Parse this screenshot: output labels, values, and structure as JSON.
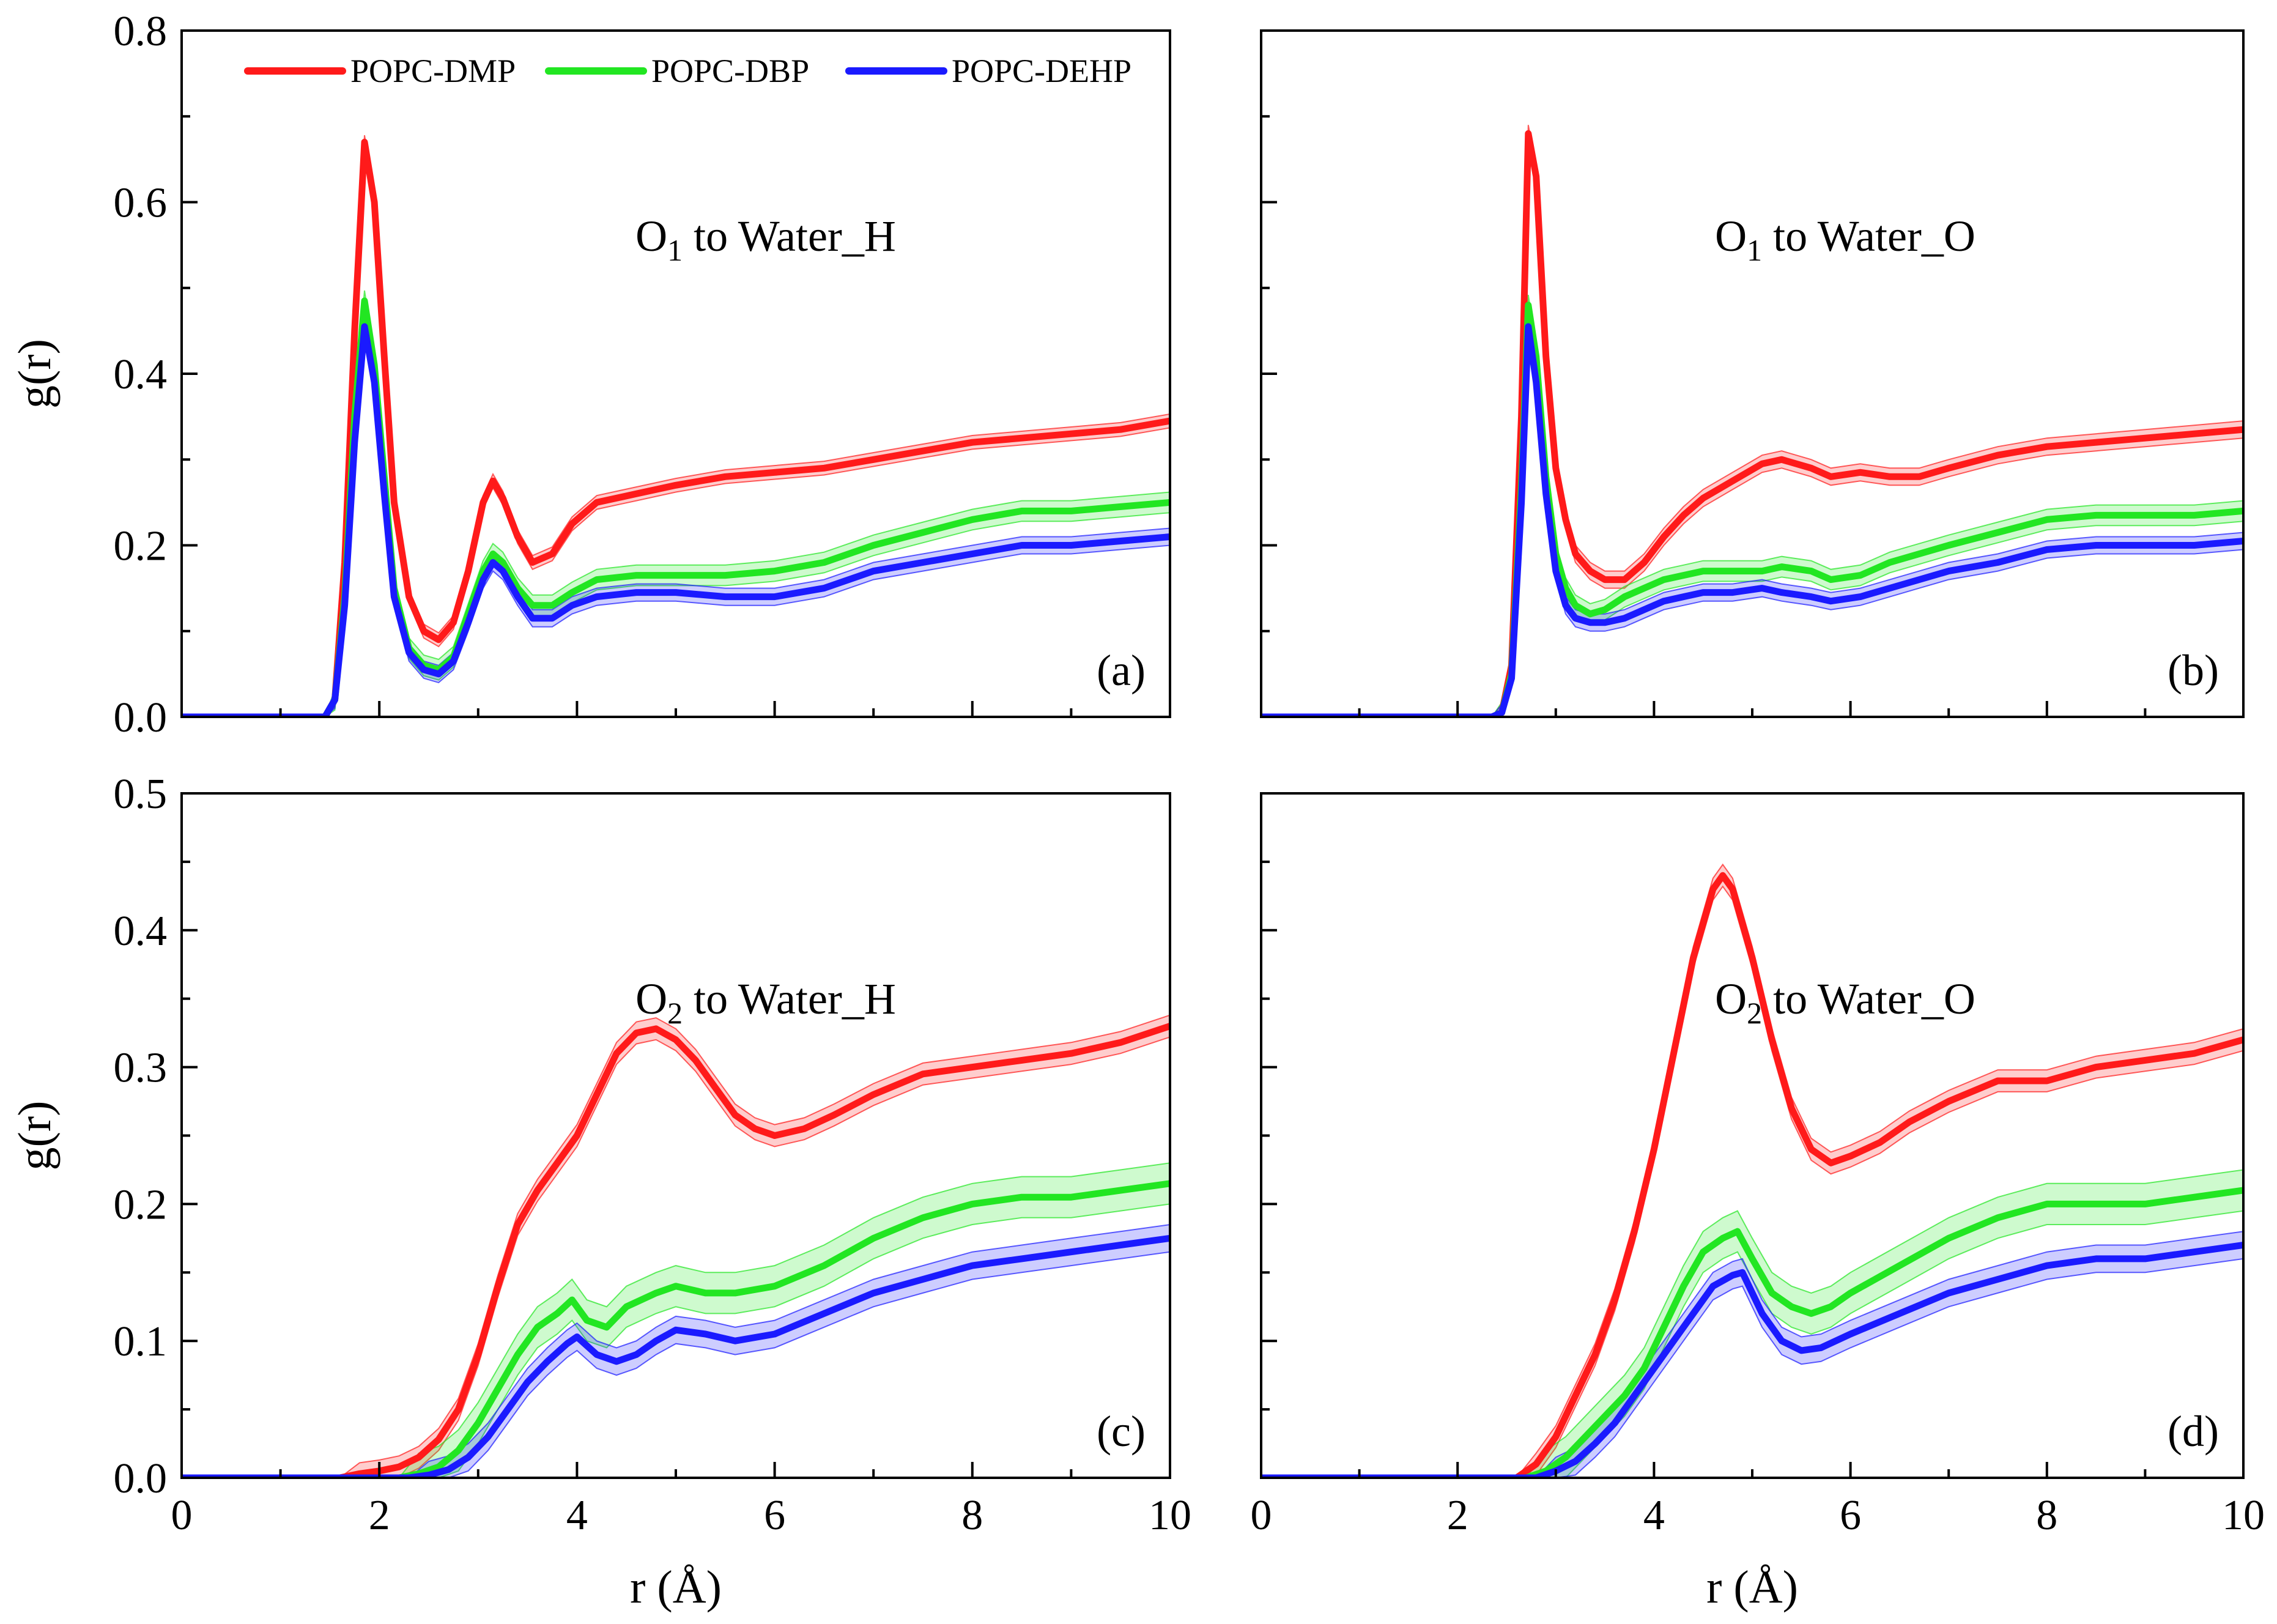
{
  "colors": {
    "POPC-DMP": "#ff1a1a",
    "POPC-DBP": "#22e622",
    "POPC-DEHP": "#1a1aff"
  },
  "legend": [
    "POPC-DMP",
    "POPC-DBP",
    "POPC-DEHP"
  ],
  "chart_data": [
    {
      "type": "line",
      "panel": "(a)",
      "annotation": {
        "main": "O",
        "sub": "1",
        "rest": " to Water_H"
      },
      "xlabel": "",
      "ylabel": "g(r)",
      "xlim": [
        0,
        10
      ],
      "ylim": [
        0,
        0.8
      ],
      "xticks": [
        0,
        2,
        4,
        6,
        8,
        10
      ],
      "yticks": [
        "0.0",
        "0.2",
        "0.4",
        "0.6",
        "0.8"
      ],
      "show_xtick_labels": false,
      "show_yticks": true,
      "series": [
        {
          "name": "POPC-DMP",
          "band": 0.008,
          "x": [
            0,
            1.45,
            1.55,
            1.65,
            1.75,
            1.85,
            1.95,
            2.05,
            2.15,
            2.3,
            2.45,
            2.6,
            2.75,
            2.9,
            3.05,
            3.15,
            3.25,
            3.4,
            3.55,
            3.75,
            3.95,
            4.2,
            4.6,
            5.0,
            5.5,
            6.0,
            6.5,
            7.0,
            7.5,
            8.0,
            8.5,
            9.0,
            9.5,
            10.0
          ],
          "y": [
            0,
            0,
            0.02,
            0.18,
            0.45,
            0.67,
            0.6,
            0.42,
            0.25,
            0.14,
            0.1,
            0.09,
            0.11,
            0.17,
            0.25,
            0.275,
            0.255,
            0.21,
            0.18,
            0.19,
            0.225,
            0.25,
            0.26,
            0.27,
            0.28,
            0.285,
            0.29,
            0.3,
            0.31,
            0.32,
            0.325,
            0.33,
            0.335,
            0.345
          ]
        },
        {
          "name": "POPC-DBP",
          "band": 0.012,
          "x": [
            0,
            1.45,
            1.55,
            1.65,
            1.75,
            1.85,
            1.95,
            2.05,
            2.15,
            2.3,
            2.45,
            2.6,
            2.75,
            2.9,
            3.05,
            3.15,
            3.25,
            3.4,
            3.55,
            3.75,
            3.95,
            4.2,
            4.6,
            5.0,
            5.5,
            6.0,
            6.5,
            7.0,
            7.5,
            8.0,
            8.5,
            9.0,
            9.5,
            10.0
          ],
          "y": [
            0,
            0,
            0.02,
            0.14,
            0.35,
            0.485,
            0.41,
            0.28,
            0.15,
            0.08,
            0.06,
            0.055,
            0.07,
            0.12,
            0.17,
            0.19,
            0.18,
            0.15,
            0.13,
            0.13,
            0.145,
            0.16,
            0.165,
            0.165,
            0.165,
            0.17,
            0.18,
            0.2,
            0.215,
            0.23,
            0.24,
            0.24,
            0.245,
            0.25
          ]
        },
        {
          "name": "POPC-DEHP",
          "band": 0.01,
          "x": [
            0,
            1.45,
            1.55,
            1.65,
            1.75,
            1.85,
            1.95,
            2.05,
            2.15,
            2.3,
            2.45,
            2.6,
            2.75,
            2.9,
            3.05,
            3.15,
            3.25,
            3.4,
            3.55,
            3.75,
            3.95,
            4.2,
            4.6,
            5.0,
            5.5,
            6.0,
            6.5,
            7.0,
            7.5,
            8.0,
            8.5,
            9.0,
            9.5,
            10.0
          ],
          "y": [
            0,
            0,
            0.02,
            0.13,
            0.32,
            0.455,
            0.39,
            0.26,
            0.14,
            0.075,
            0.055,
            0.05,
            0.065,
            0.11,
            0.16,
            0.18,
            0.17,
            0.14,
            0.115,
            0.115,
            0.13,
            0.14,
            0.145,
            0.145,
            0.14,
            0.14,
            0.15,
            0.17,
            0.18,
            0.19,
            0.2,
            0.2,
            0.205,
            0.21
          ]
        }
      ]
    },
    {
      "type": "line",
      "panel": "(b)",
      "annotation": {
        "main": "O",
        "sub": "1",
        "rest": " to Water_O"
      },
      "xlabel": "",
      "ylabel": "",
      "xlim": [
        0,
        10
      ],
      "ylim": [
        0,
        0.8
      ],
      "xticks": [
        0,
        2,
        4,
        6,
        8,
        10
      ],
      "yticks": [
        "0.0",
        "0.2",
        "0.4",
        "0.6",
        "0.8"
      ],
      "show_xtick_labels": false,
      "show_yticks": false,
      "series": [
        {
          "name": "POPC-DMP",
          "band": 0.01,
          "x": [
            0,
            2.35,
            2.45,
            2.55,
            2.65,
            2.72,
            2.8,
            2.9,
            3.0,
            3.1,
            3.2,
            3.35,
            3.5,
            3.7,
            3.9,
            4.1,
            4.3,
            4.5,
            4.8,
            5.1,
            5.3,
            5.6,
            5.8,
            6.1,
            6.4,
            6.7,
            7.0,
            7.5,
            8.0,
            8.5,
            9.0,
            9.5,
            10.0
          ],
          "y": [
            0,
            0,
            0.005,
            0.06,
            0.35,
            0.68,
            0.63,
            0.42,
            0.29,
            0.23,
            0.19,
            0.17,
            0.16,
            0.16,
            0.18,
            0.21,
            0.235,
            0.255,
            0.275,
            0.295,
            0.3,
            0.29,
            0.28,
            0.285,
            0.28,
            0.28,
            0.29,
            0.305,
            0.315,
            0.32,
            0.325,
            0.33,
            0.335
          ]
        },
        {
          "name": "POPC-DBP",
          "band": 0.012,
          "x": [
            0,
            2.35,
            2.45,
            2.55,
            2.65,
            2.72,
            2.8,
            2.9,
            3.0,
            3.1,
            3.2,
            3.35,
            3.5,
            3.7,
            3.9,
            4.1,
            4.3,
            4.5,
            4.8,
            5.1,
            5.3,
            5.6,
            5.8,
            6.1,
            6.4,
            6.7,
            7.0,
            7.5,
            8.0,
            8.5,
            9.0,
            9.5,
            10.0
          ],
          "y": [
            0,
            0,
            0.005,
            0.05,
            0.27,
            0.48,
            0.42,
            0.28,
            0.19,
            0.15,
            0.13,
            0.12,
            0.125,
            0.14,
            0.15,
            0.16,
            0.165,
            0.17,
            0.17,
            0.17,
            0.175,
            0.17,
            0.16,
            0.165,
            0.18,
            0.19,
            0.2,
            0.215,
            0.23,
            0.235,
            0.235,
            0.235,
            0.24
          ]
        },
        {
          "name": "POPC-DEHP",
          "band": 0.01,
          "x": [
            0,
            2.35,
            2.45,
            2.55,
            2.65,
            2.72,
            2.8,
            2.9,
            3.0,
            3.1,
            3.2,
            3.35,
            3.5,
            3.7,
            3.9,
            4.1,
            4.3,
            4.5,
            4.8,
            5.1,
            5.3,
            5.6,
            5.8,
            6.1,
            6.4,
            6.7,
            7.0,
            7.5,
            8.0,
            8.5,
            9.0,
            9.5,
            10.0
          ],
          "y": [
            0,
            0,
            0.005,
            0.045,
            0.25,
            0.455,
            0.39,
            0.26,
            0.17,
            0.13,
            0.115,
            0.11,
            0.11,
            0.115,
            0.125,
            0.135,
            0.14,
            0.145,
            0.145,
            0.15,
            0.145,
            0.14,
            0.135,
            0.14,
            0.15,
            0.16,
            0.17,
            0.18,
            0.195,
            0.2,
            0.2,
            0.2,
            0.205
          ]
        }
      ]
    },
    {
      "type": "line",
      "panel": "(c)",
      "annotation": {
        "main": "O",
        "sub": "2",
        "rest": " to Water_H"
      },
      "xlabel": "r (Å)",
      "ylabel": "g(r)",
      "xlim": [
        0,
        10
      ],
      "ylim": [
        0,
        0.5
      ],
      "xticks": [
        0,
        2,
        4,
        6,
        8,
        10
      ],
      "yticks": [
        "0.0",
        "0.1",
        "0.2",
        "0.3",
        "0.4",
        "0.5"
      ],
      "show_xtick_labels": true,
      "show_yticks": true,
      "series": [
        {
          "name": "POPC-DMP",
          "band": 0.008,
          "x": [
            0,
            1.6,
            1.8,
            2.0,
            2.2,
            2.4,
            2.6,
            2.8,
            3.0,
            3.2,
            3.4,
            3.6,
            3.8,
            4.0,
            4.2,
            4.4,
            4.6,
            4.8,
            5.0,
            5.2,
            5.4,
            5.6,
            5.8,
            6.0,
            6.3,
            6.6,
            7.0,
            7.5,
            8.0,
            8.5,
            9.0,
            9.5,
            10.0
          ],
          "y": [
            0,
            0,
            0.003,
            0.005,
            0.008,
            0.015,
            0.028,
            0.05,
            0.09,
            0.14,
            0.185,
            0.21,
            0.23,
            0.25,
            0.28,
            0.31,
            0.325,
            0.328,
            0.32,
            0.305,
            0.285,
            0.265,
            0.255,
            0.25,
            0.255,
            0.265,
            0.28,
            0.295,
            0.3,
            0.305,
            0.31,
            0.318,
            0.33
          ]
        },
        {
          "name": "POPC-DBP",
          "band": 0.015,
          "x": [
            0,
            2.2,
            2.4,
            2.6,
            2.8,
            3.0,
            3.2,
            3.4,
            3.6,
            3.8,
            3.95,
            4.1,
            4.3,
            4.5,
            4.8,
            5.0,
            5.3,
            5.6,
            6.0,
            6.5,
            7.0,
            7.5,
            8.0,
            8.5,
            9.0,
            9.5,
            10.0
          ],
          "y": [
            0,
            0,
            0.003,
            0.008,
            0.02,
            0.04,
            0.065,
            0.09,
            0.11,
            0.12,
            0.13,
            0.115,
            0.11,
            0.125,
            0.135,
            0.14,
            0.135,
            0.135,
            0.14,
            0.155,
            0.175,
            0.19,
            0.2,
            0.205,
            0.205,
            0.21,
            0.215
          ]
        },
        {
          "name": "POPC-DEHP",
          "band": 0.01,
          "x": [
            0,
            2.3,
            2.5,
            2.7,
            2.9,
            3.1,
            3.3,
            3.5,
            3.7,
            3.9,
            4.0,
            4.2,
            4.4,
            4.6,
            4.8,
            5.0,
            5.3,
            5.6,
            6.0,
            6.5,
            7.0,
            7.5,
            8.0,
            8.5,
            9.0,
            9.5,
            10.0
          ],
          "y": [
            0,
            0,
            0.002,
            0.006,
            0.015,
            0.03,
            0.05,
            0.07,
            0.085,
            0.098,
            0.103,
            0.09,
            0.085,
            0.09,
            0.1,
            0.108,
            0.105,
            0.1,
            0.105,
            0.12,
            0.135,
            0.145,
            0.155,
            0.16,
            0.165,
            0.17,
            0.175
          ]
        }
      ]
    },
    {
      "type": "line",
      "panel": "(d)",
      "annotation": {
        "main": "O",
        "sub": "2",
        "rest": " to Water_O"
      },
      "xlabel": "r (Å)",
      "ylabel": "",
      "xlim": [
        0,
        10
      ],
      "ylim": [
        0,
        0.5
      ],
      "xticks": [
        0,
        2,
        4,
        6,
        8,
        10
      ],
      "yticks": [
        "0.0",
        "0.1",
        "0.2",
        "0.3",
        "0.4",
        "0.5"
      ],
      "show_xtick_labels": true,
      "show_yticks": false,
      "series": [
        {
          "name": "POPC-DMP",
          "band": 0.008,
          "x": [
            0,
            2.6,
            2.8,
            3.0,
            3.2,
            3.4,
            3.6,
            3.8,
            4.0,
            4.2,
            4.4,
            4.6,
            4.7,
            4.8,
            5.0,
            5.2,
            5.4,
            5.6,
            5.8,
            6.0,
            6.3,
            6.6,
            7.0,
            7.5,
            8.0,
            8.5,
            9.0,
            9.5,
            10.0
          ],
          "y": [
            0,
            0,
            0.01,
            0.03,
            0.06,
            0.09,
            0.13,
            0.18,
            0.24,
            0.31,
            0.38,
            0.43,
            0.44,
            0.43,
            0.38,
            0.32,
            0.27,
            0.24,
            0.23,
            0.235,
            0.245,
            0.26,
            0.275,
            0.29,
            0.29,
            0.3,
            0.305,
            0.31,
            0.32
          ]
        },
        {
          "name": "POPC-DBP",
          "band": 0.015,
          "x": [
            0,
            2.7,
            2.9,
            3.1,
            3.3,
            3.5,
            3.7,
            3.9,
            4.1,
            4.3,
            4.5,
            4.7,
            4.85,
            5.0,
            5.2,
            5.4,
            5.6,
            5.8,
            6.0,
            6.5,
            7.0,
            7.5,
            8.0,
            8.5,
            9.0,
            9.5,
            10.0
          ],
          "y": [
            0,
            0,
            0.005,
            0.015,
            0.03,
            0.045,
            0.06,
            0.08,
            0.11,
            0.14,
            0.165,
            0.175,
            0.18,
            0.16,
            0.135,
            0.125,
            0.12,
            0.125,
            0.135,
            0.155,
            0.175,
            0.19,
            0.2,
            0.2,
            0.2,
            0.205,
            0.21
          ]
        },
        {
          "name": "POPC-DEHP",
          "band": 0.01,
          "x": [
            0,
            2.8,
            3.0,
            3.2,
            3.4,
            3.6,
            3.8,
            4.0,
            4.2,
            4.4,
            4.6,
            4.8,
            4.9,
            5.1,
            5.3,
            5.5,
            5.7,
            6.0,
            6.5,
            7.0,
            7.5,
            8.0,
            8.5,
            9.0,
            9.5,
            10.0
          ],
          "y": [
            0,
            0,
            0.005,
            0.012,
            0.025,
            0.04,
            0.06,
            0.08,
            0.1,
            0.12,
            0.14,
            0.148,
            0.15,
            0.12,
            0.1,
            0.093,
            0.095,
            0.105,
            0.12,
            0.135,
            0.145,
            0.155,
            0.16,
            0.16,
            0.165,
            0.17
          ]
        }
      ]
    }
  ]
}
